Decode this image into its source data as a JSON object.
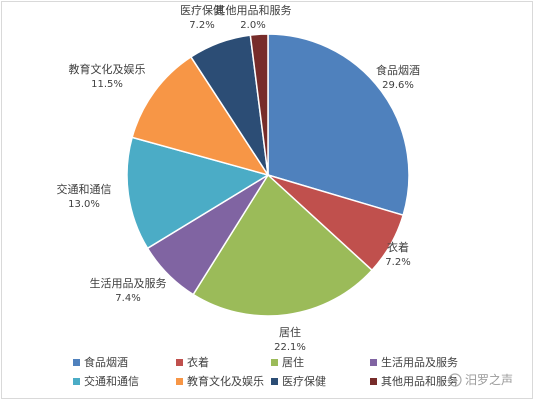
{
  "chart_data": {
    "type": "pie",
    "title": "",
    "categories": [
      "食品烟酒",
      "衣着",
      "居住",
      "生活用品及服务",
      "交通和通信",
      "教育文化及娱乐",
      "医疗保健",
      "其他用品和服务"
    ],
    "values": [
      29.6,
      7.2,
      22.1,
      7.4,
      13.0,
      11.5,
      7.2,
      2.0
    ],
    "value_labels": [
      "29.6%",
      "7.2%",
      "22.1%",
      "7.4%",
      "13.0%",
      "11.5%",
      "7.2%",
      "2.0%"
    ],
    "colors": [
      "#4f81bd",
      "#c0504d",
      "#9bbb59",
      "#8064a2",
      "#4bacc6",
      "#f79646",
      "#2c4d75",
      "#772c2a"
    ],
    "legend_position": "bottom",
    "start_angle": "top",
    "direction": "clockwise"
  },
  "watermark": {
    "text": "汨罗之声"
  }
}
